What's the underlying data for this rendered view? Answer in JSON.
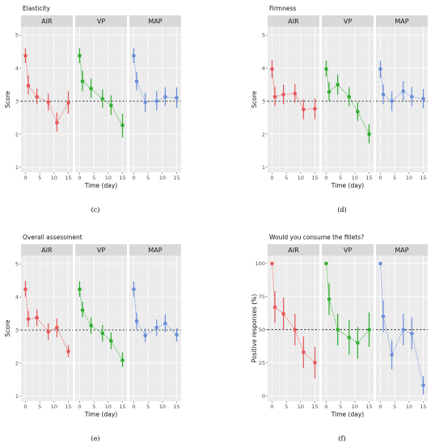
{
  "colors": {
    "AIR": "#e8585a",
    "VP": "#2fb02f",
    "MAP": "#6b8fd9",
    "panel_bg": "#ebebeb",
    "strip_bg": "#d9d9d9",
    "grid": "#ffffff",
    "reference_line": "#333333"
  },
  "chart_data": [
    {
      "type": "scatter",
      "title": "Elasticity",
      "caption": "(c)",
      "xlabel": "Time (day)",
      "ylabel": "Score",
      "facets": [
        "AIR",
        "VP",
        "MAP"
      ],
      "x": [
        0,
        1,
        4,
        8,
        11,
        15
      ],
      "xticks": [
        0,
        5,
        10,
        15
      ],
      "xlim": [
        -0.7,
        15.7
      ],
      "ylim": [
        0.85,
        5.25
      ],
      "yticks": [
        1,
        2,
        3,
        4,
        5
      ],
      "reference_line": 3,
      "series": [
        {
          "name": "AIR",
          "values": [
            4.37,
            3.47,
            3.13,
            2.97,
            2.35,
            2.95
          ],
          "low": [
            4.15,
            3.2,
            2.9,
            2.72,
            2.08,
            2.62
          ],
          "high": [
            4.6,
            3.78,
            3.38,
            3.23,
            2.65,
            3.3
          ]
        },
        {
          "name": "VP",
          "values": [
            4.37,
            3.6,
            3.38,
            3.07,
            2.87,
            2.27
          ],
          "low": [
            4.15,
            3.3,
            3.1,
            2.8,
            2.58,
            1.9
          ],
          "high": [
            4.6,
            3.92,
            3.68,
            3.35,
            3.17,
            2.62
          ]
        },
        {
          "name": "MAP",
          "values": [
            4.37,
            3.6,
            2.97,
            3.0,
            3.13,
            3.1
          ],
          "low": [
            4.15,
            3.33,
            2.68,
            2.72,
            2.85,
            2.8
          ],
          "high": [
            4.6,
            3.88,
            3.25,
            3.3,
            3.42,
            3.42
          ]
        }
      ]
    },
    {
      "type": "scatter",
      "title": "Firmness",
      "caption": "(d)",
      "xlabel": "Time (day)",
      "ylabel": "Score",
      "facets": [
        "AIR",
        "VP",
        "MAP"
      ],
      "x": [
        0,
        1,
        4,
        8,
        11,
        15
      ],
      "xticks": [
        0,
        5,
        10,
        15
      ],
      "xlim": [
        -0.7,
        15.7
      ],
      "ylim": [
        0.85,
        5.25
      ],
      "yticks": [
        1,
        2,
        3,
        4,
        5
      ],
      "reference_line": 3,
      "series": [
        {
          "name": "AIR",
          "values": [
            3.97,
            3.13,
            3.2,
            3.23,
            2.75,
            2.77
          ],
          "low": [
            3.7,
            2.85,
            2.9,
            2.95,
            2.45,
            2.45
          ],
          "high": [
            4.25,
            3.43,
            3.5,
            3.52,
            3.05,
            3.08
          ]
        },
        {
          "name": "VP",
          "values": [
            3.97,
            3.28,
            3.5,
            3.13,
            2.68,
            2.0
          ],
          "low": [
            3.75,
            3.0,
            3.2,
            2.85,
            2.4,
            1.72
          ],
          "high": [
            4.22,
            3.57,
            3.8,
            3.42,
            2.97,
            2.3
          ]
        },
        {
          "name": "MAP",
          "values": [
            3.97,
            3.2,
            3.0,
            3.3,
            3.13,
            3.07
          ],
          "low": [
            3.7,
            2.9,
            2.7,
            3.02,
            2.85,
            2.78
          ],
          "high": [
            4.22,
            3.5,
            3.3,
            3.6,
            3.43,
            3.37
          ]
        }
      ]
    },
    {
      "type": "scatter",
      "title": "Overall assessment",
      "caption": "(e)",
      "xlabel": "Time (day)",
      "ylabel": "Score",
      "facets": [
        "AIR",
        "VP",
        "MAP"
      ],
      "x": [
        0,
        1,
        4,
        8,
        11,
        15
      ],
      "xticks": [
        0,
        5,
        10,
        15
      ],
      "xlim": [
        -0.7,
        15.7
      ],
      "ylim": [
        0.85,
        5.25
      ],
      "yticks": [
        1,
        2,
        3,
        4,
        5
      ],
      "reference_line": 3,
      "series": [
        {
          "name": "AIR",
          "values": [
            4.23,
            3.33,
            3.37,
            2.95,
            3.07,
            2.35
          ],
          "low": [
            4.0,
            3.1,
            3.12,
            2.7,
            2.78,
            2.18
          ],
          "high": [
            4.48,
            3.58,
            3.62,
            3.2,
            3.35,
            2.55
          ]
        },
        {
          "name": "VP",
          "values": [
            4.23,
            3.6,
            3.13,
            2.9,
            2.67,
            2.08
          ],
          "low": [
            4.0,
            3.38,
            2.88,
            2.65,
            2.42,
            1.88
          ],
          "high": [
            4.47,
            3.85,
            3.38,
            3.15,
            2.92,
            2.33
          ]
        },
        {
          "name": "MAP",
          "values": [
            4.23,
            3.27,
            2.83,
            3.07,
            3.2,
            2.85
          ],
          "low": [
            4.0,
            3.02,
            2.63,
            2.82,
            2.93,
            2.65
          ],
          "high": [
            4.47,
            3.52,
            3.05,
            3.32,
            3.48,
            3.05
          ]
        }
      ]
    },
    {
      "type": "scatter",
      "title": "Would you consume the fillets?",
      "caption": "(f)",
      "xlabel": "Time (day)",
      "ylabel": "Positive responses (%)",
      "facets": [
        "AIR",
        "VP",
        "MAP"
      ],
      "x": [
        0,
        1,
        4,
        8,
        11,
        15
      ],
      "xticks": [
        0,
        5,
        10,
        15
      ],
      "xlim": [
        -0.7,
        15.7
      ],
      "ylim": [
        -4,
        106
      ],
      "yticks": [
        0,
        25,
        50,
        75,
        100
      ],
      "reference_line": 50,
      "series": [
        {
          "name": "AIR",
          "values": [
            100,
            67,
            62,
            50,
            33,
            25
          ],
          "low": [
            100,
            55,
            50,
            38,
            21,
            13
          ],
          "high": [
            100,
            79,
            74,
            62,
            45,
            37
          ]
        },
        {
          "name": "VP",
          "values": [
            100,
            73,
            50,
            44,
            40,
            50
          ],
          "low": [
            100,
            61,
            38,
            31,
            28,
            37
          ],
          "high": [
            100,
            85,
            62,
            57,
            52,
            63
          ]
        },
        {
          "name": "MAP",
          "values": [
            100,
            60,
            31,
            50,
            47,
            8
          ],
          "low": [
            100,
            48,
            20,
            38,
            35,
            1
          ],
          "high": [
            100,
            72,
            42,
            62,
            59,
            15
          ]
        }
      ]
    }
  ]
}
